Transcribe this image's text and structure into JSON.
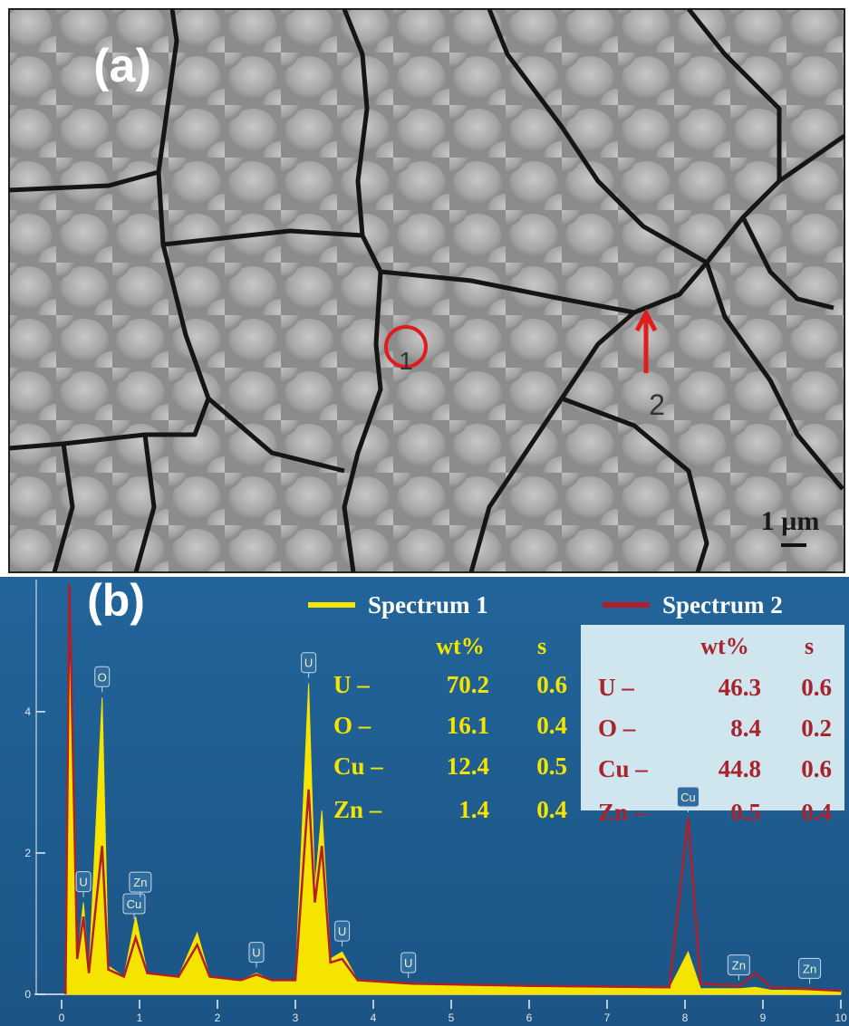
{
  "panel_a": {
    "label": "(a)",
    "marker_1": "1",
    "marker_2": "2",
    "scale_bar": "1 µm"
  },
  "chart_data": {
    "type": "spectrum",
    "label": "(b)",
    "x": [
      0.05,
      0.1,
      0.2,
      0.28,
      0.35,
      0.52,
      0.6,
      0.8,
      0.95,
      1.1,
      1.5,
      1.74,
      1.9,
      2.3,
      2.5,
      2.7,
      3.0,
      3.17,
      3.25,
      3.34,
      3.45,
      3.6,
      3.8,
      4.5,
      6.0,
      7.8,
      8.04,
      8.2,
      8.7,
      8.9,
      9.1,
      10.0
    ],
    "series": [
      {
        "name": "Spectrum 1",
        "color": "#f5e400",
        "values": [
          0,
          5.8,
          0.5,
          1.3,
          0.3,
          4.2,
          0.4,
          0.25,
          1.1,
          0.3,
          0.25,
          0.87,
          0.25,
          0.2,
          0.3,
          0.2,
          0.2,
          4.4,
          1.5,
          2.6,
          0.5,
          0.6,
          0.2,
          0.15,
          0.1,
          0.08,
          0.6,
          0.08,
          0.08,
          0.1,
          0.06,
          0.05
        ]
      },
      {
        "name": "Spectrum 2",
        "color": "#b0202a",
        "values": [
          0,
          5.8,
          0.5,
          1.1,
          0.3,
          2.1,
          0.35,
          0.25,
          0.8,
          0.3,
          0.25,
          0.7,
          0.25,
          0.2,
          0.28,
          0.2,
          0.2,
          2.9,
          1.3,
          2.1,
          0.45,
          0.5,
          0.2,
          0.15,
          0.12,
          0.1,
          2.5,
          0.15,
          0.12,
          0.3,
          0.1,
          0.05
        ]
      }
    ],
    "xlim": [
      0,
      10
    ],
    "xticks": [
      0,
      1,
      2,
      3,
      4,
      5,
      6,
      7,
      8,
      9,
      10
    ],
    "ylim": [
      0,
      5.87
    ],
    "yticks": [
      0,
      2,
      4
    ],
    "peak_labels": [
      {
        "label": "U",
        "energy": 0.28
      },
      {
        "label": "O",
        "energy": 0.52
      },
      {
        "label": "Cu",
        "energy": 0.93
      },
      {
        "label": "Zn",
        "energy": 1.01
      },
      {
        "label": "U",
        "energy": 2.5
      },
      {
        "label": "U",
        "energy": 3.17
      },
      {
        "label": "U",
        "energy": 3.6
      },
      {
        "label": "U",
        "energy": 4.45
      },
      {
        "label": "Cu",
        "energy": 8.04
      },
      {
        "label": "Zn",
        "energy": 8.69
      },
      {
        "label": "Zn",
        "energy": 9.6
      }
    ],
    "tables": [
      {
        "header": [
          "wt%",
          "s"
        ],
        "rows": [
          [
            "U –",
            70.2,
            0.6
          ],
          [
            "O –",
            16.1,
            0.4
          ],
          [
            "Cu –",
            12.4,
            0.5
          ],
          [
            "Zn –",
            1.4,
            0.4
          ]
        ]
      },
      {
        "header": [
          "wt%",
          "s"
        ],
        "rows": [
          [
            "U –",
            46.3,
            0.6
          ],
          [
            "O –",
            8.4,
            0.2
          ],
          [
            "Cu –",
            44.8,
            0.6
          ],
          [
            "Zn –",
            0.5,
            0.4
          ]
        ]
      }
    ]
  }
}
